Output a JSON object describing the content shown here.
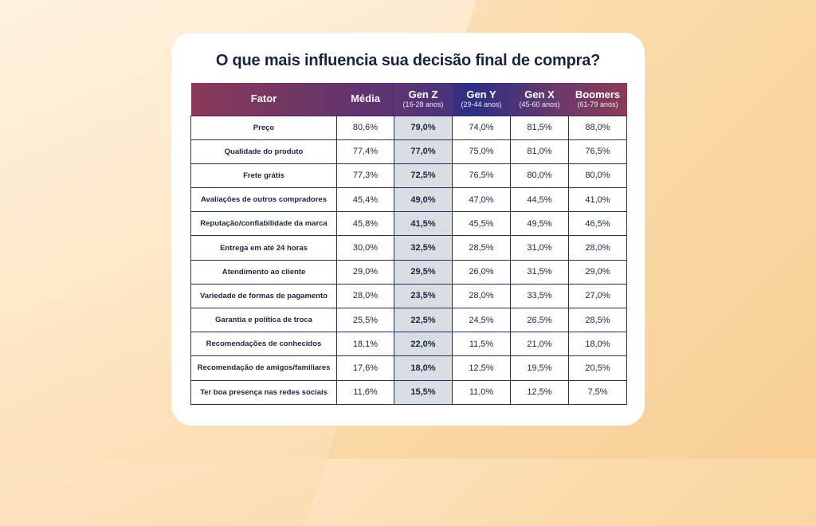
{
  "title": "O que mais influencia sua decisão final de compra?",
  "colors": {
    "header_gradient": [
      "#8a3a57",
      "#2d2f86",
      "#8c3b54"
    ],
    "genz_highlight": "#d9dde4",
    "border": "#27315a"
  },
  "table": {
    "headers": [
      {
        "label": "Fator",
        "sub": ""
      },
      {
        "label": "Média",
        "sub": ""
      },
      {
        "label": "Gen Z",
        "sub": "(16-28 anos)"
      },
      {
        "label": "Gen Y",
        "sub": "(29-44 anos)"
      },
      {
        "label": "Gen X",
        "sub": "(45-60 anos)"
      },
      {
        "label": "Boomers",
        "sub": "(61-79 anos)"
      }
    ],
    "rows": [
      [
        "Preço",
        "80,6%",
        "79,0%",
        "74,0%",
        "81,5%",
        "88,0%"
      ],
      [
        "Qualidade do produto",
        "77,4%",
        "77,0%",
        "75,0%",
        "81,0%",
        "76,5%"
      ],
      [
        "Frete grátis",
        "77,3%",
        "72,5%",
        "76,5%",
        "80,0%",
        "80,0%"
      ],
      [
        "Avaliações de outros compradores",
        "45,4%",
        "49,0%",
        "47,0%",
        "44,5%",
        "41,0%"
      ],
      [
        "Reputação/confiabilidade da marca",
        "45,8%",
        "41,5%",
        "45,5%",
        "49,5%",
        "46,5%"
      ],
      [
        "Entrega em até 24 horas",
        "30,0%",
        "32,5%",
        "28,5%",
        "31,0%",
        "28,0%"
      ],
      [
        "Atendimento ao cliente",
        "29,0%",
        "29,5%",
        "26,0%",
        "31,5%",
        "29,0%"
      ],
      [
        "Variedade de formas de pagamento",
        "28,0%",
        "23,5%",
        "28,0%",
        "33,5%",
        "27,0%"
      ],
      [
        "Garantia e política de troca",
        "25,5%",
        "22,5%",
        "24,5%",
        "26,5%",
        "28,5%"
      ],
      [
        "Recomendações de conhecidos",
        "18,1%",
        "22,0%",
        "11,5%",
        "21,0%",
        "18,0%"
      ],
      [
        "Recomendação de amigos/familiares",
        "17,6%",
        "18,0%",
        "12,5%",
        "19,5%",
        "20,5%"
      ],
      [
        "Ter boa presença nas redes sociais",
        "11,6%",
        "15,5%",
        "11,0%",
        "12,5%",
        "7,5%"
      ]
    ]
  }
}
